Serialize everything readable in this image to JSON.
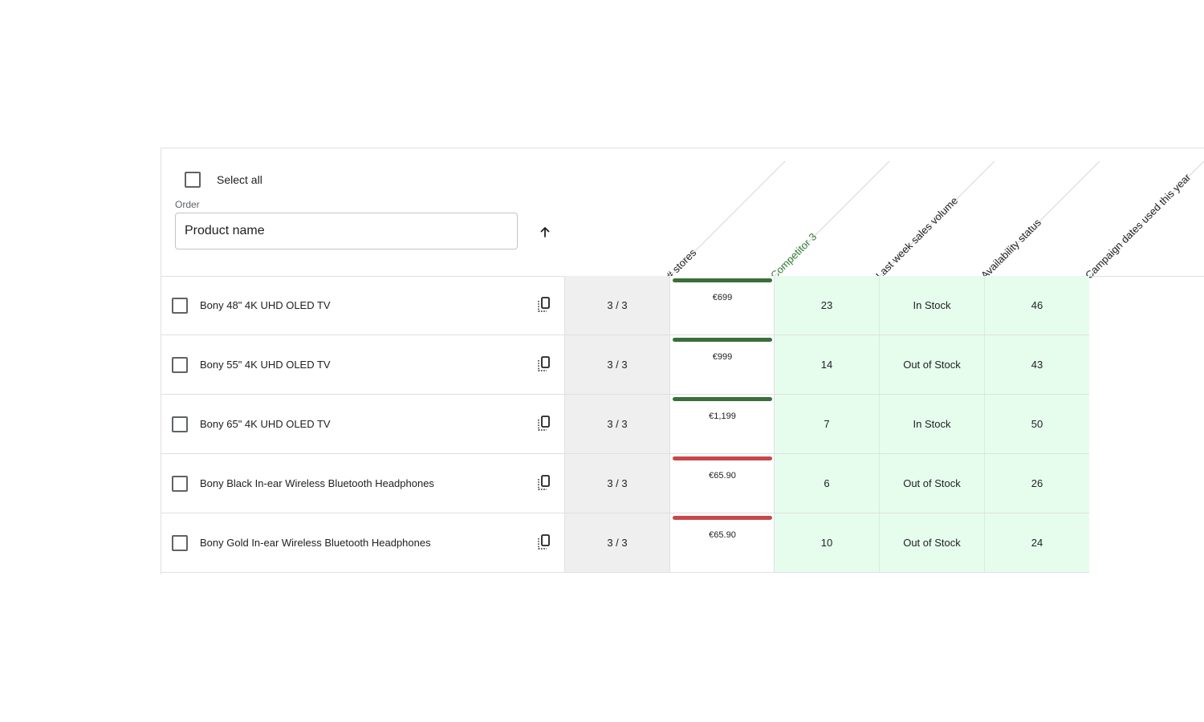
{
  "header": {
    "select_all_label": "Select all",
    "order_label": "Order",
    "order_value": "Product name",
    "sort_direction": "ascending"
  },
  "columns": [
    {
      "key": "stores",
      "label": "# stores",
      "color": "#202124"
    },
    {
      "key": "competitor",
      "label": "Competitor 3",
      "color": "#2e7d32"
    },
    {
      "key": "sales",
      "label": "Last week sales volume",
      "color": "#202124"
    },
    {
      "key": "availability",
      "label": "Availability status",
      "color": "#202124"
    },
    {
      "key": "campaign",
      "label": "Campaign dates used this year",
      "color": "#202124"
    }
  ],
  "colors": {
    "price_better": "#3a6e3a",
    "price_worse": "#c9474a",
    "highlight_bg": "#e6fdee"
  },
  "rows": [
    {
      "name": "Bony 48\" 4K UHD OLED TV",
      "stores": "3 / 3",
      "price": "€699",
      "price_status": "better",
      "sales": "23",
      "availability": "In Stock",
      "campaign": "46"
    },
    {
      "name": "Bony 55\" 4K UHD OLED TV",
      "stores": "3 / 3",
      "price": "€999",
      "price_status": "better",
      "sales": "14",
      "availability": "Out of Stock",
      "campaign": "43"
    },
    {
      "name": "Bony 65\" 4K UHD OLED TV",
      "stores": "3 / 3",
      "price": "€1,199",
      "price_status": "better",
      "sales": "7",
      "availability": "In Stock",
      "campaign": "50"
    },
    {
      "name": "Bony Black In-ear Wireless Bluetooth Headphones",
      "stores": "3 / 3",
      "price": "€65.90",
      "price_status": "worse",
      "sales": "6",
      "availability": "Out of Stock",
      "campaign": "26"
    },
    {
      "name": "Bony Gold In-ear Wireless Bluetooth Headphones",
      "stores": "3 / 3",
      "price": "€65.90",
      "price_status": "worse",
      "sales": "10",
      "availability": "Out of Stock",
      "campaign": "24"
    }
  ]
}
